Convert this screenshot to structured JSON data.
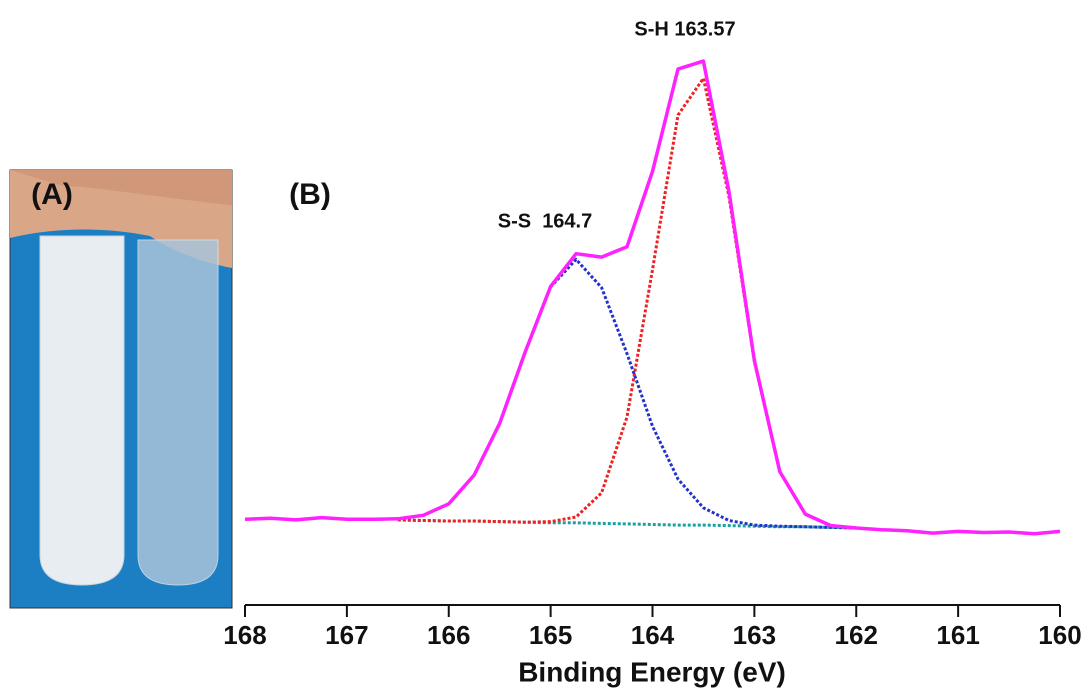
{
  "photo": {
    "label": "(A)"
  },
  "chart_data": {
    "type": "line",
    "panel_label": "(B)",
    "xlabel": "Binding Energy (eV)",
    "annotations": [
      "S-H 163.57",
      "S-S  164.7"
    ],
    "xlim": [
      168,
      160
    ],
    "xticks": [
      168,
      167,
      166,
      165,
      164,
      163,
      162,
      161,
      160
    ],
    "ylim": [
      0,
      100
    ],
    "x": [
      168,
      167.75,
      167.5,
      167.25,
      167,
      166.75,
      166.5,
      166.25,
      166,
      165.75,
      165.5,
      165.25,
      165,
      164.75,
      164.5,
      164.25,
      164,
      163.75,
      163.5,
      163.25,
      163,
      162.75,
      162.5,
      162.25,
      162,
      161.75,
      161.5,
      161.25,
      161,
      160.75,
      160.5,
      160.25,
      160
    ],
    "series": [
      {
        "color": "#1aa0a0",
        "dash": true,
        "values": [
          null,
          null,
          null,
          null,
          null,
          null,
          14.8,
          14.7,
          14.6,
          14.6,
          14.5,
          14.4,
          14.3,
          14.3,
          14.2,
          14.1,
          14.0,
          13.9,
          13.9,
          13.8,
          13.7,
          13.6,
          13.6,
          13.5,
          13.4,
          null,
          null,
          null,
          null,
          null,
          null,
          null,
          null
        ]
      },
      {
        "color": "#ee2222",
        "dash": true,
        "values": [
          null,
          null,
          null,
          null,
          null,
          null,
          14.8,
          14.7,
          14.6,
          14.6,
          14.5,
          14.4,
          14.5,
          15.3,
          19.5,
          32.7,
          58.3,
          85.2,
          91.6,
          71.1,
          42.3,
          23.2,
          15.8,
          13.8,
          13.4,
          null,
          null,
          null,
          null,
          null,
          null,
          null,
          null
        ]
      },
      {
        "color": "#2233cc",
        "dash": true,
        "values": [
          null,
          null,
          null,
          null,
          null,
          null,
          15.0,
          15.6,
          17.6,
          22.6,
          31.6,
          44.0,
          55.3,
          60.1,
          55.2,
          43.7,
          31.1,
          21.9,
          16.9,
          14.7,
          13.9,
          13.7,
          13.6,
          13.5,
          13.4,
          null,
          null,
          null,
          null,
          null,
          null,
          null,
          null
        ]
      },
      {
        "color": "#ff22ff",
        "dash": false,
        "values": [
          14.9,
          15.1,
          14.8,
          15.2,
          14.9,
          14.9,
          15.0,
          15.6,
          17.6,
          22.6,
          31.6,
          44.0,
          55.4,
          61.1,
          60.5,
          62.3,
          75.4,
          93.2,
          94.6,
          72.0,
          42.5,
          23.2,
          15.8,
          13.8,
          13.4,
          13.1,
          12.9,
          12.5,
          12.8,
          12.6,
          12.7,
          12.4,
          12.8
        ]
      }
    ]
  }
}
